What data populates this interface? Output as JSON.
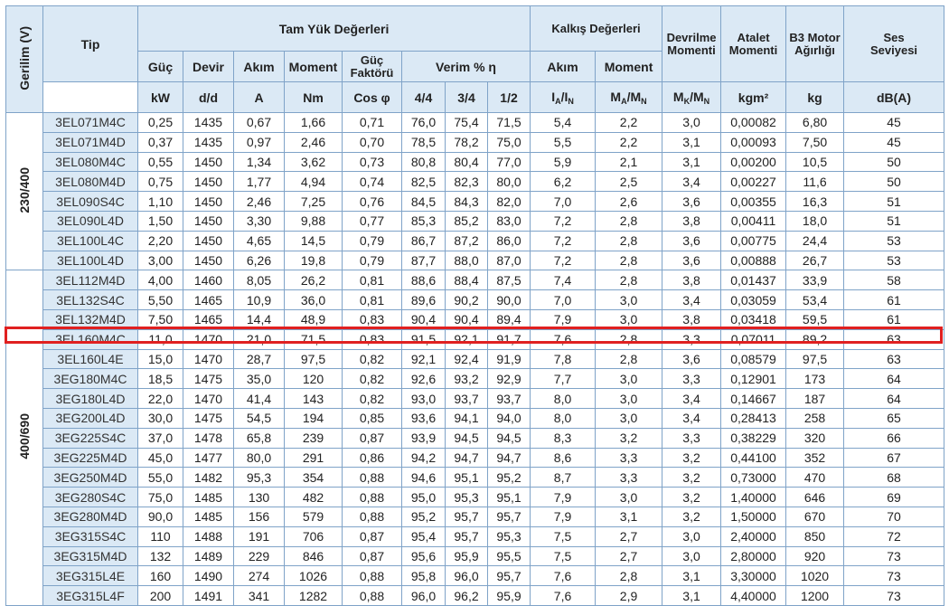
{
  "header": {
    "voltage": "Gerilim (V)",
    "type": "Tip",
    "full_load": "Tam Yük Değerleri",
    "startup": "Kalkış Değerleri",
    "breakdown": "Devrilme Momenti",
    "inertia": "Atalet Momenti",
    "weight": "B3 Motor Ağırlığı",
    "sound": "Ses Seviyesi",
    "power": "Güç",
    "speed": "Devir",
    "current": "Akım",
    "moment": "Moment",
    "pf": "Güç Faktörü",
    "efficiency": "Verim % η",
    "start_current": "Akım",
    "start_moment": "Moment",
    "u_kw": "kW",
    "u_dd": "d/d",
    "u_a": "A",
    "u_nm": "Nm",
    "u_cos": "Cos φ",
    "u_44": "4/4",
    "u_34": "3/4",
    "u_12": "1/2",
    "u_kgm2": "kgm²",
    "u_kg": "kg",
    "u_db": "dB(A)"
  },
  "groups": [
    "230/400",
    "400/690"
  ],
  "rows": [
    [
      "3EL071M4C",
      "0,25",
      "1435",
      "0,67",
      "1,66",
      "0,71",
      "76,0",
      "75,4",
      "71,5",
      "5,4",
      "2,2",
      "3,0",
      "0,00082",
      "6,80",
      "45"
    ],
    [
      "3EL071M4D",
      "0,37",
      "1435",
      "0,97",
      "2,46",
      "0,70",
      "78,5",
      "78,2",
      "75,0",
      "5,5",
      "2,2",
      "3,1",
      "0,00093",
      "7,50",
      "45"
    ],
    [
      "3EL080M4C",
      "0,55",
      "1450",
      "1,34",
      "3,62",
      "0,73",
      "80,8",
      "80,4",
      "77,0",
      "5,9",
      "2,1",
      "3,1",
      "0,00200",
      "10,5",
      "50"
    ],
    [
      "3EL080M4D",
      "0,75",
      "1450",
      "1,77",
      "4,94",
      "0,74",
      "82,5",
      "82,3",
      "80,0",
      "6,2",
      "2,5",
      "3,4",
      "0,00227",
      "11,6",
      "50"
    ],
    [
      "3EL090S4C",
      "1,10",
      "1450",
      "2,46",
      "7,25",
      "0,76",
      "84,5",
      "84,3",
      "82,0",
      "7,0",
      "2,6",
      "3,6",
      "0,00355",
      "16,3",
      "51"
    ],
    [
      "3EL090L4D",
      "1,50",
      "1450",
      "3,30",
      "9,88",
      "0,77",
      "85,3",
      "85,2",
      "83,0",
      "7,2",
      "2,8",
      "3,8",
      "0,00411",
      "18,0",
      "51"
    ],
    [
      "3EL100L4C",
      "2,20",
      "1450",
      "4,65",
      "14,5",
      "0,79",
      "86,7",
      "87,2",
      "86,0",
      "7,2",
      "2,8",
      "3,6",
      "0,00775",
      "24,4",
      "53"
    ],
    [
      "3EL100L4D",
      "3,00",
      "1450",
      "6,26",
      "19,8",
      "0,79",
      "87,7",
      "88,0",
      "87,0",
      "7,2",
      "2,8",
      "3,6",
      "0,00888",
      "26,7",
      "53"
    ],
    [
      "3EL112M4D",
      "4,00",
      "1460",
      "8,05",
      "26,2",
      "0,81",
      "88,6",
      "88,4",
      "87,5",
      "7,4",
      "2,8",
      "3,8",
      "0,01437",
      "33,9",
      "58"
    ],
    [
      "3EL132S4C",
      "5,50",
      "1465",
      "10,9",
      "36,0",
      "0,81",
      "89,6",
      "90,2",
      "90,0",
      "7,0",
      "3,0",
      "3,4",
      "0,03059",
      "53,4",
      "61"
    ],
    [
      "3EL132M4D",
      "7,50",
      "1465",
      "14,4",
      "48,9",
      "0,83",
      "90,4",
      "90,4",
      "89,4",
      "7,9",
      "3,0",
      "3,8",
      "0,03418",
      "59,5",
      "61"
    ],
    [
      "3EL160M4C",
      "11,0",
      "1470",
      "21,0",
      "71,5",
      "0,83",
      "91,5",
      "92,1",
      "91,7",
      "7,6",
      "2,8",
      "3,3",
      "0,07011",
      "89,2",
      "63"
    ],
    [
      "3EL160L4E",
      "15,0",
      "1470",
      "28,7",
      "97,5",
      "0,82",
      "92,1",
      "92,4",
      "91,9",
      "7,8",
      "2,8",
      "3,6",
      "0,08579",
      "97,5",
      "63"
    ],
    [
      "3EG180M4C",
      "18,5",
      "1475",
      "35,0",
      "120",
      "0,82",
      "92,6",
      "93,2",
      "92,9",
      "7,7",
      "3,0",
      "3,3",
      "0,12901",
      "173",
      "64"
    ],
    [
      "3EG180L4D",
      "22,0",
      "1470",
      "41,4",
      "143",
      "0,82",
      "93,0",
      "93,7",
      "93,7",
      "8,0",
      "3,0",
      "3,4",
      "0,14667",
      "187",
      "64"
    ],
    [
      "3EG200L4D",
      "30,0",
      "1475",
      "54,5",
      "194",
      "0,85",
      "93,6",
      "94,1",
      "94,0",
      "8,0",
      "3,0",
      "3,4",
      "0,28413",
      "258",
      "65"
    ],
    [
      "3EG225S4C",
      "37,0",
      "1478",
      "65,8",
      "239",
      "0,87",
      "93,9",
      "94,5",
      "94,5",
      "8,3",
      "3,2",
      "3,3",
      "0,38229",
      "320",
      "66"
    ],
    [
      "3EG225M4D",
      "45,0",
      "1477",
      "80,0",
      "291",
      "0,86",
      "94,2",
      "94,7",
      "94,7",
      "8,6",
      "3,3",
      "3,2",
      "0,44100",
      "352",
      "67"
    ],
    [
      "3EG250M4D",
      "55,0",
      "1482",
      "95,3",
      "354",
      "0,88",
      "94,6",
      "95,1",
      "95,2",
      "8,7",
      "3,3",
      "3,2",
      "0,73000",
      "470",
      "68"
    ],
    [
      "3EG280S4C",
      "75,0",
      "1485",
      "130",
      "482",
      "0,88",
      "95,0",
      "95,3",
      "95,1",
      "7,9",
      "3,0",
      "3,2",
      "1,40000",
      "646",
      "69"
    ],
    [
      "3EG280M4D",
      "90,0",
      "1485",
      "156",
      "579",
      "0,88",
      "95,2",
      "95,7",
      "95,7",
      "7,9",
      "3,1",
      "3,2",
      "1,50000",
      "670",
      "70"
    ],
    [
      "3EG315S4C",
      "110",
      "1488",
      "191",
      "706",
      "0,87",
      "95,4",
      "95,7",
      "95,3",
      "7,5",
      "2,7",
      "3,0",
      "2,40000",
      "850",
      "72"
    ],
    [
      "3EG315M4D",
      "132",
      "1489",
      "229",
      "846",
      "0,87",
      "95,6",
      "95,9",
      "95,5",
      "7,5",
      "2,7",
      "3,0",
      "2,80000",
      "920",
      "73"
    ],
    [
      "3EG315L4E",
      "160",
      "1490",
      "274",
      "1026",
      "0,88",
      "95,8",
      "96,0",
      "95,7",
      "7,6",
      "2,8",
      "3,1",
      "3,30000",
      "1020",
      "73"
    ],
    [
      "3EG315L4F",
      "200",
      "1491",
      "341",
      "1282",
      "0,88",
      "96,0",
      "96,2",
      "95,9",
      "7,6",
      "2,9",
      "3,1",
      "4,40000",
      "1200",
      "73"
    ]
  ],
  "highlight_row": 11,
  "colors": {
    "header_bg": "#dbe9f5",
    "grid": "#7fa3c8",
    "highlight": "#e02020"
  }
}
